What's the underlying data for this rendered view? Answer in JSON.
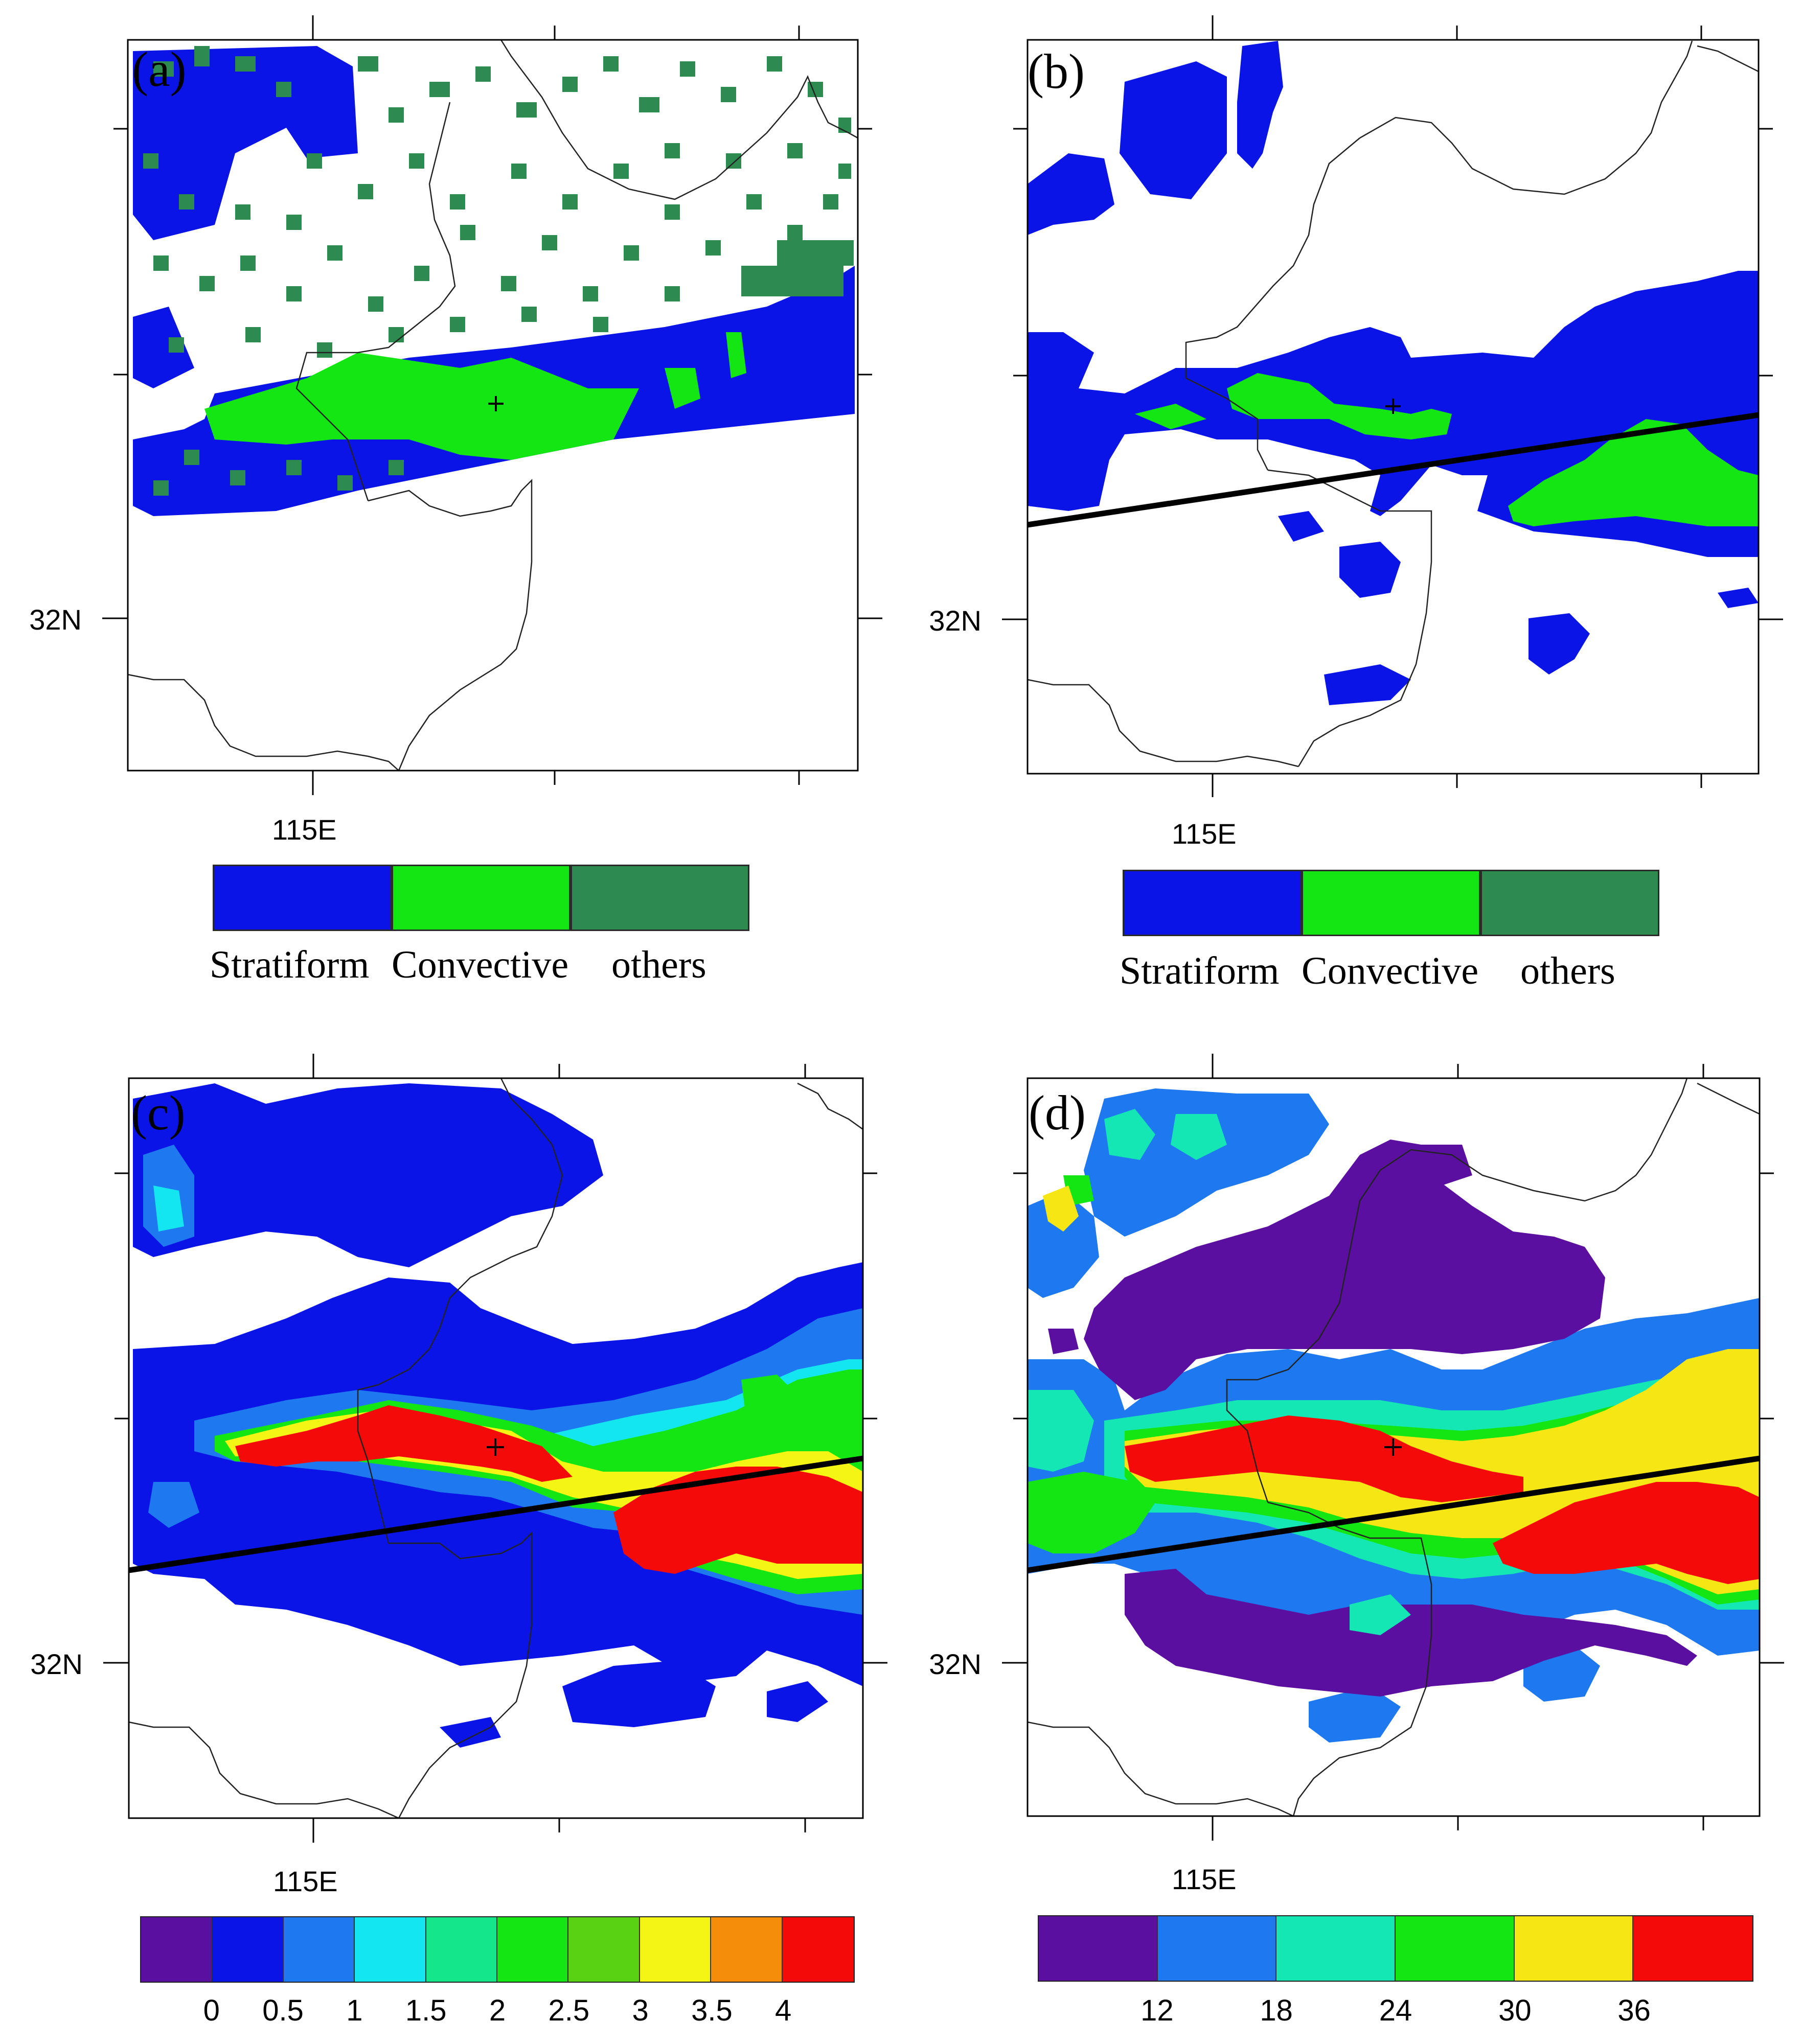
{
  "panels": {
    "a": {
      "label": "(a)",
      "lat_label": "32N",
      "lon_label": "115E"
    },
    "b": {
      "label": "(b)",
      "lat_label": "32N",
      "lon_label": "115E"
    },
    "c": {
      "label": "(c)",
      "lat_label": "32N",
      "lon_label": "115E"
    },
    "d": {
      "label": "(d)",
      "lat_label": "32N",
      "lon_label": "115E"
    }
  },
  "category_legend": {
    "items": [
      {
        "label": "Stratiform",
        "color": "#0a14e6"
      },
      {
        "label": "Convective",
        "color": "#14e614"
      },
      {
        "label": "others",
        "color": "#2e8b50"
      }
    ]
  },
  "legend_c": {
    "colors": [
      "#5a0fa0",
      "#0a14e6",
      "#1e78f0",
      "#14e6f0",
      "#14e68c",
      "#14e614",
      "#5ad214",
      "#f5f514",
      "#f58c0a",
      "#f50a0a"
    ],
    "ticks": [
      "0",
      "0.5",
      "1",
      "1.5",
      "2",
      "2.5",
      "3",
      "3.5",
      "4"
    ]
  },
  "legend_d": {
    "colors": [
      "#5a0fa0",
      "#1e78f0",
      "#14e6b4",
      "#14e614",
      "#f5e614",
      "#f50a0a"
    ],
    "ticks": [
      "12",
      "18",
      "24",
      "30",
      "36"
    ]
  },
  "map_colors": {
    "purple": "#5a0fa0",
    "blue": "#0a14e6",
    "light_blue": "#1e78f0",
    "cyan": "#14e6f0",
    "aqua": "#14e6b4",
    "green": "#14e614",
    "dark_green": "#2e8b50",
    "yellow": "#f5e614",
    "orange": "#f58c0a",
    "red": "#f50a0a"
  },
  "icons": {
    "center_marker": "plus-cross-marker"
  }
}
